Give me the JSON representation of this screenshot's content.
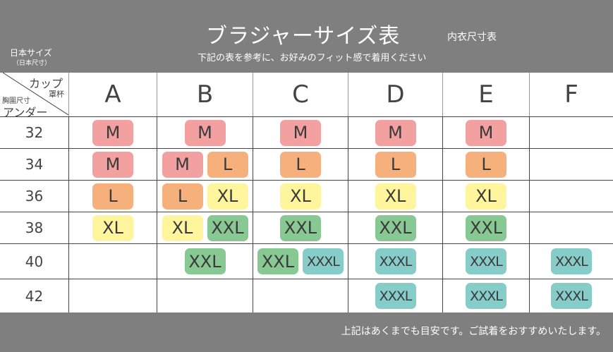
{
  "header": {
    "title": "ブラジャーサイズ表",
    "subtitle": "内衣尺寸表",
    "note": "下記の表を参考に、お好みのフィット感で着用ください",
    "size_system": "日本サイズ",
    "size_system_sub": "（日本尺寸）"
  },
  "corner": {
    "cup": "カップ",
    "cup_cn": "罩杯",
    "under_cn": "胸圍尺寸",
    "under": "アンダー"
  },
  "cups": [
    "A",
    "B",
    "C",
    "D",
    "E",
    "F"
  ],
  "colors": {
    "M": "#f2a0a0",
    "L": "#f5b07c",
    "XL": "#fff59c",
    "XXL": "#88c892",
    "XXXL": "#86ccc8"
  },
  "rows": [
    {
      "under": "32",
      "cells": [
        [
          "M"
        ],
        [
          "M"
        ],
        [
          "M"
        ],
        [
          "M"
        ],
        [
          "M"
        ],
        []
      ]
    },
    {
      "under": "34",
      "cells": [
        [
          "M"
        ],
        [
          "M",
          "L"
        ],
        [
          "L"
        ],
        [
          "L"
        ],
        [
          "L"
        ],
        []
      ]
    },
    {
      "under": "36",
      "cells": [
        [
          "L"
        ],
        [
          "L",
          "XL"
        ],
        [
          "XL"
        ],
        [
          "XL"
        ],
        [
          "XL"
        ],
        []
      ]
    },
    {
      "under": "38",
      "cells": [
        [
          "XL"
        ],
        [
          "XL",
          "XXL"
        ],
        [
          "XXL"
        ],
        [
          "XXL"
        ],
        [
          "XXL"
        ],
        []
      ]
    },
    {
      "under": "40",
      "cells": [
        [],
        [
          "XXL"
        ],
        [
          "XXL",
          "XXXL"
        ],
        [
          "XXXL"
        ],
        [
          "XXXL"
        ],
        [
          "XXXL"
        ]
      ]
    },
    {
      "under": "42",
      "cells": [
        [],
        [],
        [],
        [
          "XXXL"
        ],
        [
          "XXXL"
        ],
        [
          "XXXL"
        ]
      ]
    }
  ],
  "footer": {
    "note": "上記はあくまでも目安です。ご試着をおすすめいたします。"
  }
}
